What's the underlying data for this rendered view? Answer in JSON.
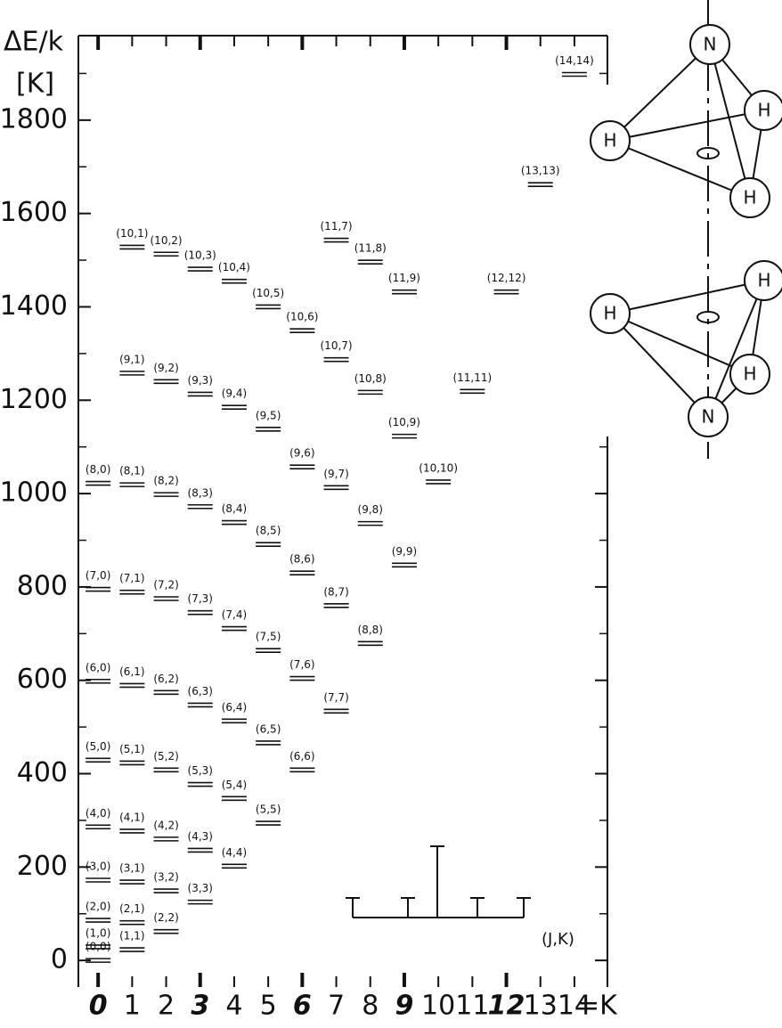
{
  "chart_data": {
    "type": "levels",
    "y_label": "ΔE/k",
    "y_unit": "[K]",
    "x_label": "=K",
    "annotation": "(J,K)",
    "xlim": [
      -0.58,
      14.97
    ],
    "ylim": [
      -57,
      1981
    ],
    "xticks": [
      0,
      1,
      2,
      3,
      4,
      5,
      6,
      7,
      8,
      9,
      10,
      11,
      12,
      13,
      14
    ],
    "ortho_k": [
      0,
      3,
      6,
      9,
      12
    ],
    "yticks": [
      0,
      200,
      400,
      600,
      800,
      1000,
      1200,
      1400,
      1600,
      1800
    ],
    "yminorticks": [
      100,
      300,
      500,
      700,
      900,
      1100,
      1300,
      1500,
      1700,
      1900
    ],
    "color": "#111111",
    "x": [
      0,
      0,
      0,
      0,
      0,
      0,
      0,
      0,
      0,
      1,
      1,
      1,
      1,
      1,
      1,
      1,
      1,
      1,
      1,
      2,
      2,
      2,
      2,
      2,
      2,
      2,
      2,
      2,
      3,
      3,
      3,
      3,
      3,
      3,
      3,
      3,
      4,
      4,
      4,
      4,
      4,
      4,
      4,
      5,
      5,
      5,
      5,
      5,
      5,
      6,
      6,
      6,
      6,
      6,
      7,
      7,
      7,
      7,
      7,
      8,
      8,
      8,
      8,
      9,
      9,
      9,
      10,
      11,
      12,
      13,
      14
    ],
    "values": [
      0,
      29,
      86,
      172,
      286,
      429,
      598,
      795,
      1022,
      23,
      81,
      168,
      277,
      423,
      589,
      789,
      1019,
      1258,
      1528,
      62,
      149,
      260,
      408,
      574,
      775,
      998,
      1240,
      1513,
      125,
      236,
      377,
      547,
      745,
      972,
      1213,
      1481,
      202,
      347,
      513,
      711,
      938,
      1185,
      1455,
      294,
      466,
      664,
      891,
      1138,
      1400,
      408,
      604,
      830,
      1057,
      1349,
      534,
      760,
      1013,
      1287,
      1543,
      679,
      936,
      1217,
      1496,
      847,
      1123,
      1432,
      1025,
      1219,
      1432,
      1662,
      1898
    ],
    "labels": [
      "(0,0)",
      "(1,0)",
      "(2,0)",
      "(3,0)",
      "(4,0)",
      "(5,0)",
      "(6,0)",
      "(7,0)",
      "(8,0)",
      "(1,1)",
      "(2,1)",
      "(3,1)",
      "(4,1)",
      "(5,1)",
      "(6,1)",
      "(7,1)",
      "(8,1)",
      "(9,1)",
      "(10,1)",
      "(2,2)",
      "(3,2)",
      "(4,2)",
      "(5,2)",
      "(6,2)",
      "(7,2)",
      "(8,2)",
      "(9,2)",
      "(10,2)",
      "(3,3)",
      "(4,3)",
      "(5,3)",
      "(6,3)",
      "(7,3)",
      "(8,3)",
      "(9,3)",
      "(10,3)",
      "(4,4)",
      "(5,4)",
      "(6,4)",
      "(7,4)",
      "(8,4)",
      "(9,4)",
      "(10,4)",
      "(5,5)",
      "(6,5)",
      "(7,5)",
      "(8,5)",
      "(9,5)",
      "(10,5)",
      "(6,6)",
      "(7,6)",
      "(8,6)",
      "(9,6)",
      "(10,6)",
      "(7,7)",
      "(8,7)",
      "(9,7)",
      "(10,7)",
      "(11,7)",
      "(8,8)",
      "(9,8)",
      "(10,8)",
      "(11,8)",
      "(9,9)",
      "(10,9)",
      "(11,9)",
      "(10,10)",
      "(11,11)",
      "(12,12)",
      "(13,13)",
      "(14,14)"
    ]
  },
  "molecules": {
    "top": [
      "N",
      "H",
      "H",
      "H"
    ],
    "bottom": [
      "H",
      "H",
      "H",
      "N"
    ]
  }
}
